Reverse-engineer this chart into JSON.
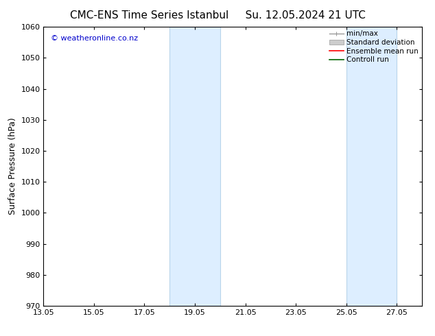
{
  "title_left": "CMC-ENS Time Series Istanbul",
  "title_right": "Su. 12.05.2024 21 UTC",
  "ylabel": "Surface Pressure (hPa)",
  "watermark": "© weatheronline.co.nz",
  "watermark_color": "#0000cc",
  "ylim": [
    970,
    1060
  ],
  "yticks": [
    970,
    980,
    990,
    1000,
    1010,
    1020,
    1030,
    1040,
    1050,
    1060
  ],
  "xlim_start": 13.05,
  "xlim_end": 28.05,
  "xticks": [
    13.05,
    15.05,
    17.05,
    19.05,
    21.05,
    23.05,
    25.05,
    27.05
  ],
  "xticklabels": [
    "13.05",
    "15.05",
    "17.05",
    "19.05",
    "21.05",
    "23.05",
    "25.05",
    "27.05"
  ],
  "shaded_bands": [
    {
      "x_start": 18.05,
      "x_end": 20.05
    },
    {
      "x_start": 25.05,
      "x_end": 27.05
    }
  ],
  "shaded_color": "#ddeeff",
  "shaded_edge_color": "#b8d4ea",
  "background_color": "#ffffff",
  "plot_bg_color": "#ffffff",
  "legend_items": [
    {
      "label": "min/max",
      "color": "#999999",
      "lw": 1.0,
      "type": "errorbar"
    },
    {
      "label": "Standard deviation",
      "color": "#cccccc",
      "lw": 1.0,
      "type": "band"
    },
    {
      "label": "Ensemble mean run",
      "color": "#ff0000",
      "lw": 1.2,
      "type": "line"
    },
    {
      "label": "Controll run",
      "color": "#006600",
      "lw": 1.2,
      "type": "line"
    }
  ],
  "title_fontsize": 11,
  "axis_label_fontsize": 9,
  "tick_fontsize": 8,
  "legend_fontsize": 7.5,
  "watermark_fontsize": 8
}
